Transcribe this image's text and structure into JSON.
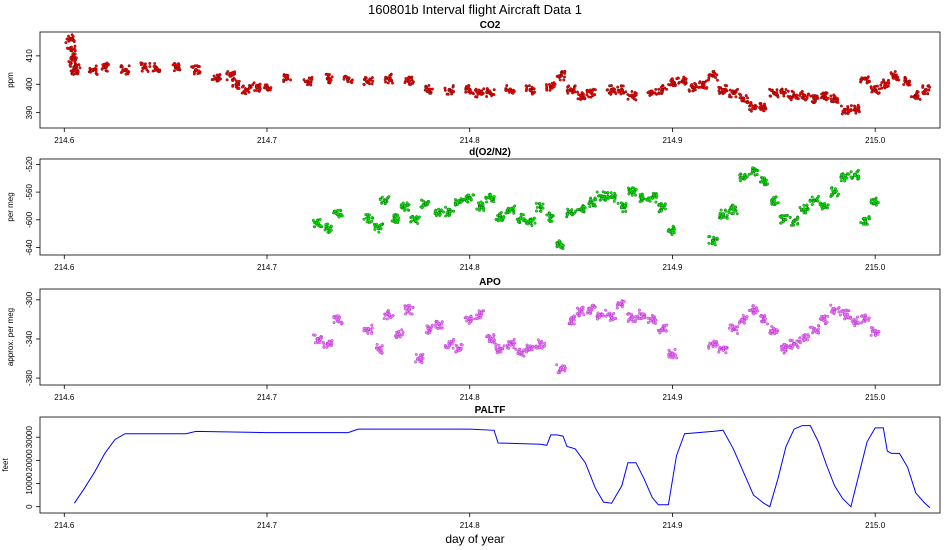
{
  "figure": {
    "title": "160801b   Interval flight Aircraft Data 1",
    "xlabel": "day of year"
  },
  "chart_data": [
    {
      "type": "scatter",
      "title": "CO2",
      "ylabel": "ppm",
      "color": "#ff0000",
      "edge_color": "#330000",
      "xlim": [
        214.59,
        215.03
      ],
      "ylim": [
        386,
        417
      ],
      "xticks": [
        214.6,
        214.7,
        214.8,
        214.9,
        215.0
      ],
      "xtick_labels": [
        "214.6",
        "214.7",
        "214.8",
        "214.9",
        "215.0"
      ],
      "yticks": [
        390,
        400,
        410
      ],
      "ytick_labels": [
        "390",
        "400",
        "410"
      ],
      "points": [
        [
          214.603,
          416
        ],
        [
          214.6035,
          412
        ],
        [
          214.604,
          409
        ],
        [
          214.605,
          406
        ],
        [
          214.606,
          405
        ],
        [
          214.614,
          405
        ],
        [
          214.62,
          406
        ],
        [
          214.63,
          405
        ],
        [
          214.64,
          406
        ],
        [
          214.645,
          406
        ],
        [
          214.655,
          406
        ],
        [
          214.665,
          405
        ],
        [
          214.675,
          402
        ],
        [
          214.682,
          403
        ],
        [
          214.685,
          400
        ],
        [
          214.69,
          398
        ],
        [
          214.695,
          399
        ],
        [
          214.7,
          399
        ],
        [
          214.71,
          402
        ],
        [
          214.72,
          401
        ],
        [
          214.73,
          402
        ],
        [
          214.74,
          402
        ],
        [
          214.75,
          401
        ],
        [
          214.76,
          402
        ],
        [
          214.77,
          401
        ],
        [
          214.78,
          398
        ],
        [
          214.79,
          398
        ],
        [
          214.8,
          398
        ],
        [
          214.805,
          397
        ],
        [
          214.81,
          397
        ],
        [
          214.82,
          398
        ],
        [
          214.83,
          398
        ],
        [
          214.84,
          399
        ],
        [
          214.845,
          403
        ],
        [
          214.85,
          398
        ],
        [
          214.855,
          396
        ],
        [
          214.86,
          397
        ],
        [
          214.87,
          398
        ],
        [
          214.875,
          398
        ],
        [
          214.88,
          396
        ],
        [
          214.89,
          397
        ],
        [
          214.895,
          398
        ],
        [
          214.9,
          401
        ],
        [
          214.905,
          401
        ],
        [
          214.91,
          399
        ],
        [
          214.915,
          400
        ],
        [
          214.92,
          403
        ],
        [
          214.925,
          398
        ],
        [
          214.93,
          397
        ],
        [
          214.935,
          395
        ],
        [
          214.94,
          392
        ],
        [
          214.945,
          392
        ],
        [
          214.95,
          397
        ],
        [
          214.955,
          397
        ],
        [
          214.96,
          396
        ],
        [
          214.965,
          396
        ],
        [
          214.97,
          395
        ],
        [
          214.975,
          396
        ],
        [
          214.98,
          395
        ],
        [
          214.985,
          391
        ],
        [
          214.99,
          391
        ],
        [
          214.995,
          402
        ],
        [
          215.0,
          398
        ],
        [
          215.005,
          400
        ],
        [
          215.01,
          403
        ],
        [
          215.015,
          401
        ],
        [
          215.02,
          396
        ],
        [
          215.025,
          398
        ]
      ]
    },
    {
      "type": "scatter",
      "title": "d(O2/N2)",
      "ylabel": "per meg",
      "color": "#00ee00",
      "edge_color": "#003300",
      "xlim": [
        214.59,
        215.03
      ],
      "ylim": [
        -645,
        -518
      ],
      "xticks": [
        214.6,
        214.7,
        214.8,
        214.9,
        215.0
      ],
      "xtick_labels": [
        "214.6",
        "214.7",
        "214.8",
        "214.9",
        "215.0"
      ],
      "yticks": [
        -640,
        -600,
        -560,
        -520
      ],
      "ytick_labels": [
        "-640",
        "-600",
        "-560",
        "-520"
      ],
      "points": [
        [
          214.725,
          -605
        ],
        [
          214.73,
          -612
        ],
        [
          214.735,
          -592
        ],
        [
          214.75,
          -598
        ],
        [
          214.755,
          -612
        ],
        [
          214.758,
          -572
        ],
        [
          214.763,
          -598
        ],
        [
          214.768,
          -580
        ],
        [
          214.773,
          -600
        ],
        [
          214.778,
          -578
        ],
        [
          214.785,
          -590
        ],
        [
          214.79,
          -588
        ],
        [
          214.795,
          -574
        ],
        [
          214.8,
          -568
        ],
        [
          214.805,
          -580
        ],
        [
          214.81,
          -568
        ],
        [
          214.815,
          -595
        ],
        [
          214.82,
          -585
        ],
        [
          214.825,
          -598
        ],
        [
          214.83,
          -604
        ],
        [
          214.835,
          -582
        ],
        [
          214.84,
          -596
        ],
        [
          214.845,
          -636
        ],
        [
          214.85,
          -590
        ],
        [
          214.855,
          -585
        ],
        [
          214.86,
          -575
        ],
        [
          214.865,
          -566
        ],
        [
          214.87,
          -567
        ],
        [
          214.875,
          -582
        ],
        [
          214.88,
          -560
        ],
        [
          214.885,
          -568
        ],
        [
          214.89,
          -568
        ],
        [
          214.895,
          -582
        ],
        [
          214.9,
          -615
        ],
        [
          214.92,
          -630
        ],
        [
          214.925,
          -592
        ],
        [
          214.93,
          -585
        ],
        [
          214.935,
          -540
        ],
        [
          214.94,
          -530
        ],
        [
          214.945,
          -545
        ],
        [
          214.95,
          -572
        ],
        [
          214.955,
          -600
        ],
        [
          214.96,
          -602
        ],
        [
          214.965,
          -585
        ],
        [
          214.97,
          -572
        ],
        [
          214.975,
          -580
        ],
        [
          214.98,
          -560
        ],
        [
          214.985,
          -540
        ],
        [
          214.99,
          -535
        ],
        [
          214.995,
          -600
        ],
        [
          215.0,
          -575
        ]
      ]
    },
    {
      "type": "scatter",
      "title": "APO",
      "ylabel": "approx. per meg",
      "color": "#ee82ee",
      "edge_color": "#9900cc",
      "xlim": [
        214.59,
        215.03
      ],
      "ylim": [
        -383,
        -293
      ],
      "xticks": [
        214.6,
        214.7,
        214.8,
        214.9,
        215.0
      ],
      "xtick_labels": [
        "214.6",
        "214.7",
        "214.8",
        "214.9",
        "215.0"
      ],
      "yticks": [
        -380,
        -340,
        -300
      ],
      "ytick_labels": [
        "-380",
        "-340",
        "-300"
      ],
      "points": [
        [
          214.725,
          -340
        ],
        [
          214.73,
          -345
        ],
        [
          214.735,
          -320
        ],
        [
          214.75,
          -330
        ],
        [
          214.755,
          -350
        ],
        [
          214.76,
          -315
        ],
        [
          214.765,
          -335
        ],
        [
          214.77,
          -310
        ],
        [
          214.775,
          -360
        ],
        [
          214.78,
          -330
        ],
        [
          214.785,
          -325
        ],
        [
          214.79,
          -345
        ],
        [
          214.795,
          -350
        ],
        [
          214.8,
          -320
        ],
        [
          214.805,
          -315
        ],
        [
          214.81,
          -340
        ],
        [
          214.815,
          -350
        ],
        [
          214.82,
          -345
        ],
        [
          214.825,
          -355
        ],
        [
          214.83,
          -350
        ],
        [
          214.835,
          -345
        ],
        [
          214.845,
          -370
        ],
        [
          214.85,
          -320
        ],
        [
          214.855,
          -312
        ],
        [
          214.86,
          -310
        ],
        [
          214.865,
          -315
        ],
        [
          214.87,
          -318
        ],
        [
          214.875,
          -305
        ],
        [
          214.88,
          -318
        ],
        [
          214.885,
          -315
        ],
        [
          214.89,
          -320
        ],
        [
          214.895,
          -330
        ],
        [
          214.9,
          -355
        ],
        [
          214.92,
          -345
        ],
        [
          214.925,
          -350
        ],
        [
          214.93,
          -330
        ],
        [
          214.935,
          -320
        ],
        [
          214.94,
          -310
        ],
        [
          214.945,
          -320
        ],
        [
          214.95,
          -330
        ],
        [
          214.955,
          -350
        ],
        [
          214.96,
          -345
        ],
        [
          214.965,
          -340
        ],
        [
          214.97,
          -330
        ],
        [
          214.975,
          -320
        ],
        [
          214.98,
          -310
        ],
        [
          214.985,
          -315
        ],
        [
          214.99,
          -322
        ],
        [
          214.995,
          -320
        ],
        [
          215.0,
          -332
        ]
      ]
    },
    {
      "type": "line",
      "title": "PALTF",
      "ylabel": "feet",
      "color": "#0000ff",
      "xlim": [
        214.59,
        215.03
      ],
      "ylim": [
        -1000,
        37000
      ],
      "xticks": [
        214.6,
        214.7,
        214.8,
        214.9,
        215.0
      ],
      "xtick_labels": [
        "214.6",
        "214.7",
        "214.8",
        "214.9",
        "215.0"
      ],
      "yticks": [
        0,
        10000,
        20000,
        30000
      ],
      "ytick_labels": [
        "0",
        "10000",
        "20000",
        "30000"
      ],
      "points": [
        [
          214.605,
          1500
        ],
        [
          214.61,
          8000
        ],
        [
          214.615,
          15000
        ],
        [
          214.62,
          23000
        ],
        [
          214.625,
          29000
        ],
        [
          214.63,
          31500
        ],
        [
          214.66,
          31500
        ],
        [
          214.665,
          32500
        ],
        [
          214.7,
          32000
        ],
        [
          214.74,
          32000
        ],
        [
          214.745,
          33500
        ],
        [
          214.8,
          33500
        ],
        [
          214.812,
          33000
        ],
        [
          214.814,
          27500
        ],
        [
          214.835,
          27000
        ],
        [
          214.838,
          26500
        ],
        [
          214.84,
          31000
        ],
        [
          214.843,
          31000
        ],
        [
          214.846,
          30500
        ],
        [
          214.848,
          26000
        ],
        [
          214.852,
          25000
        ],
        [
          214.857,
          19000
        ],
        [
          214.862,
          8000
        ],
        [
          214.866,
          2000
        ],
        [
          214.87,
          1500
        ],
        [
          214.875,
          9000
        ],
        [
          214.878,
          19000
        ],
        [
          214.882,
          19000
        ],
        [
          214.886,
          12000
        ],
        [
          214.89,
          4000
        ],
        [
          214.893,
          800
        ],
        [
          214.898,
          800
        ],
        [
          214.902,
          22000
        ],
        [
          214.906,
          31500
        ],
        [
          214.92,
          32500
        ],
        [
          214.925,
          33000
        ],
        [
          214.93,
          25000
        ],
        [
          214.935,
          15000
        ],
        [
          214.94,
          5000
        ],
        [
          214.945,
          1500
        ],
        [
          214.948,
          0
        ],
        [
          214.952,
          12000
        ],
        [
          214.956,
          26000
        ],
        [
          214.96,
          33500
        ],
        [
          214.964,
          35000
        ],
        [
          214.968,
          35000
        ],
        [
          214.972,
          28000
        ],
        [
          214.976,
          18000
        ],
        [
          214.98,
          9000
        ],
        [
          214.984,
          3500
        ],
        [
          214.988,
          0
        ],
        [
          214.992,
          14000
        ],
        [
          214.996,
          28000
        ],
        [
          215.0,
          34000
        ],
        [
          215.004,
          34000
        ],
        [
          215.006,
          24000
        ],
        [
          215.008,
          23000
        ],
        [
          215.012,
          23000
        ],
        [
          215.016,
          17000
        ],
        [
          215.02,
          6000
        ],
        [
          215.024,
          2000
        ],
        [
          215.027,
          -500
        ]
      ]
    }
  ]
}
